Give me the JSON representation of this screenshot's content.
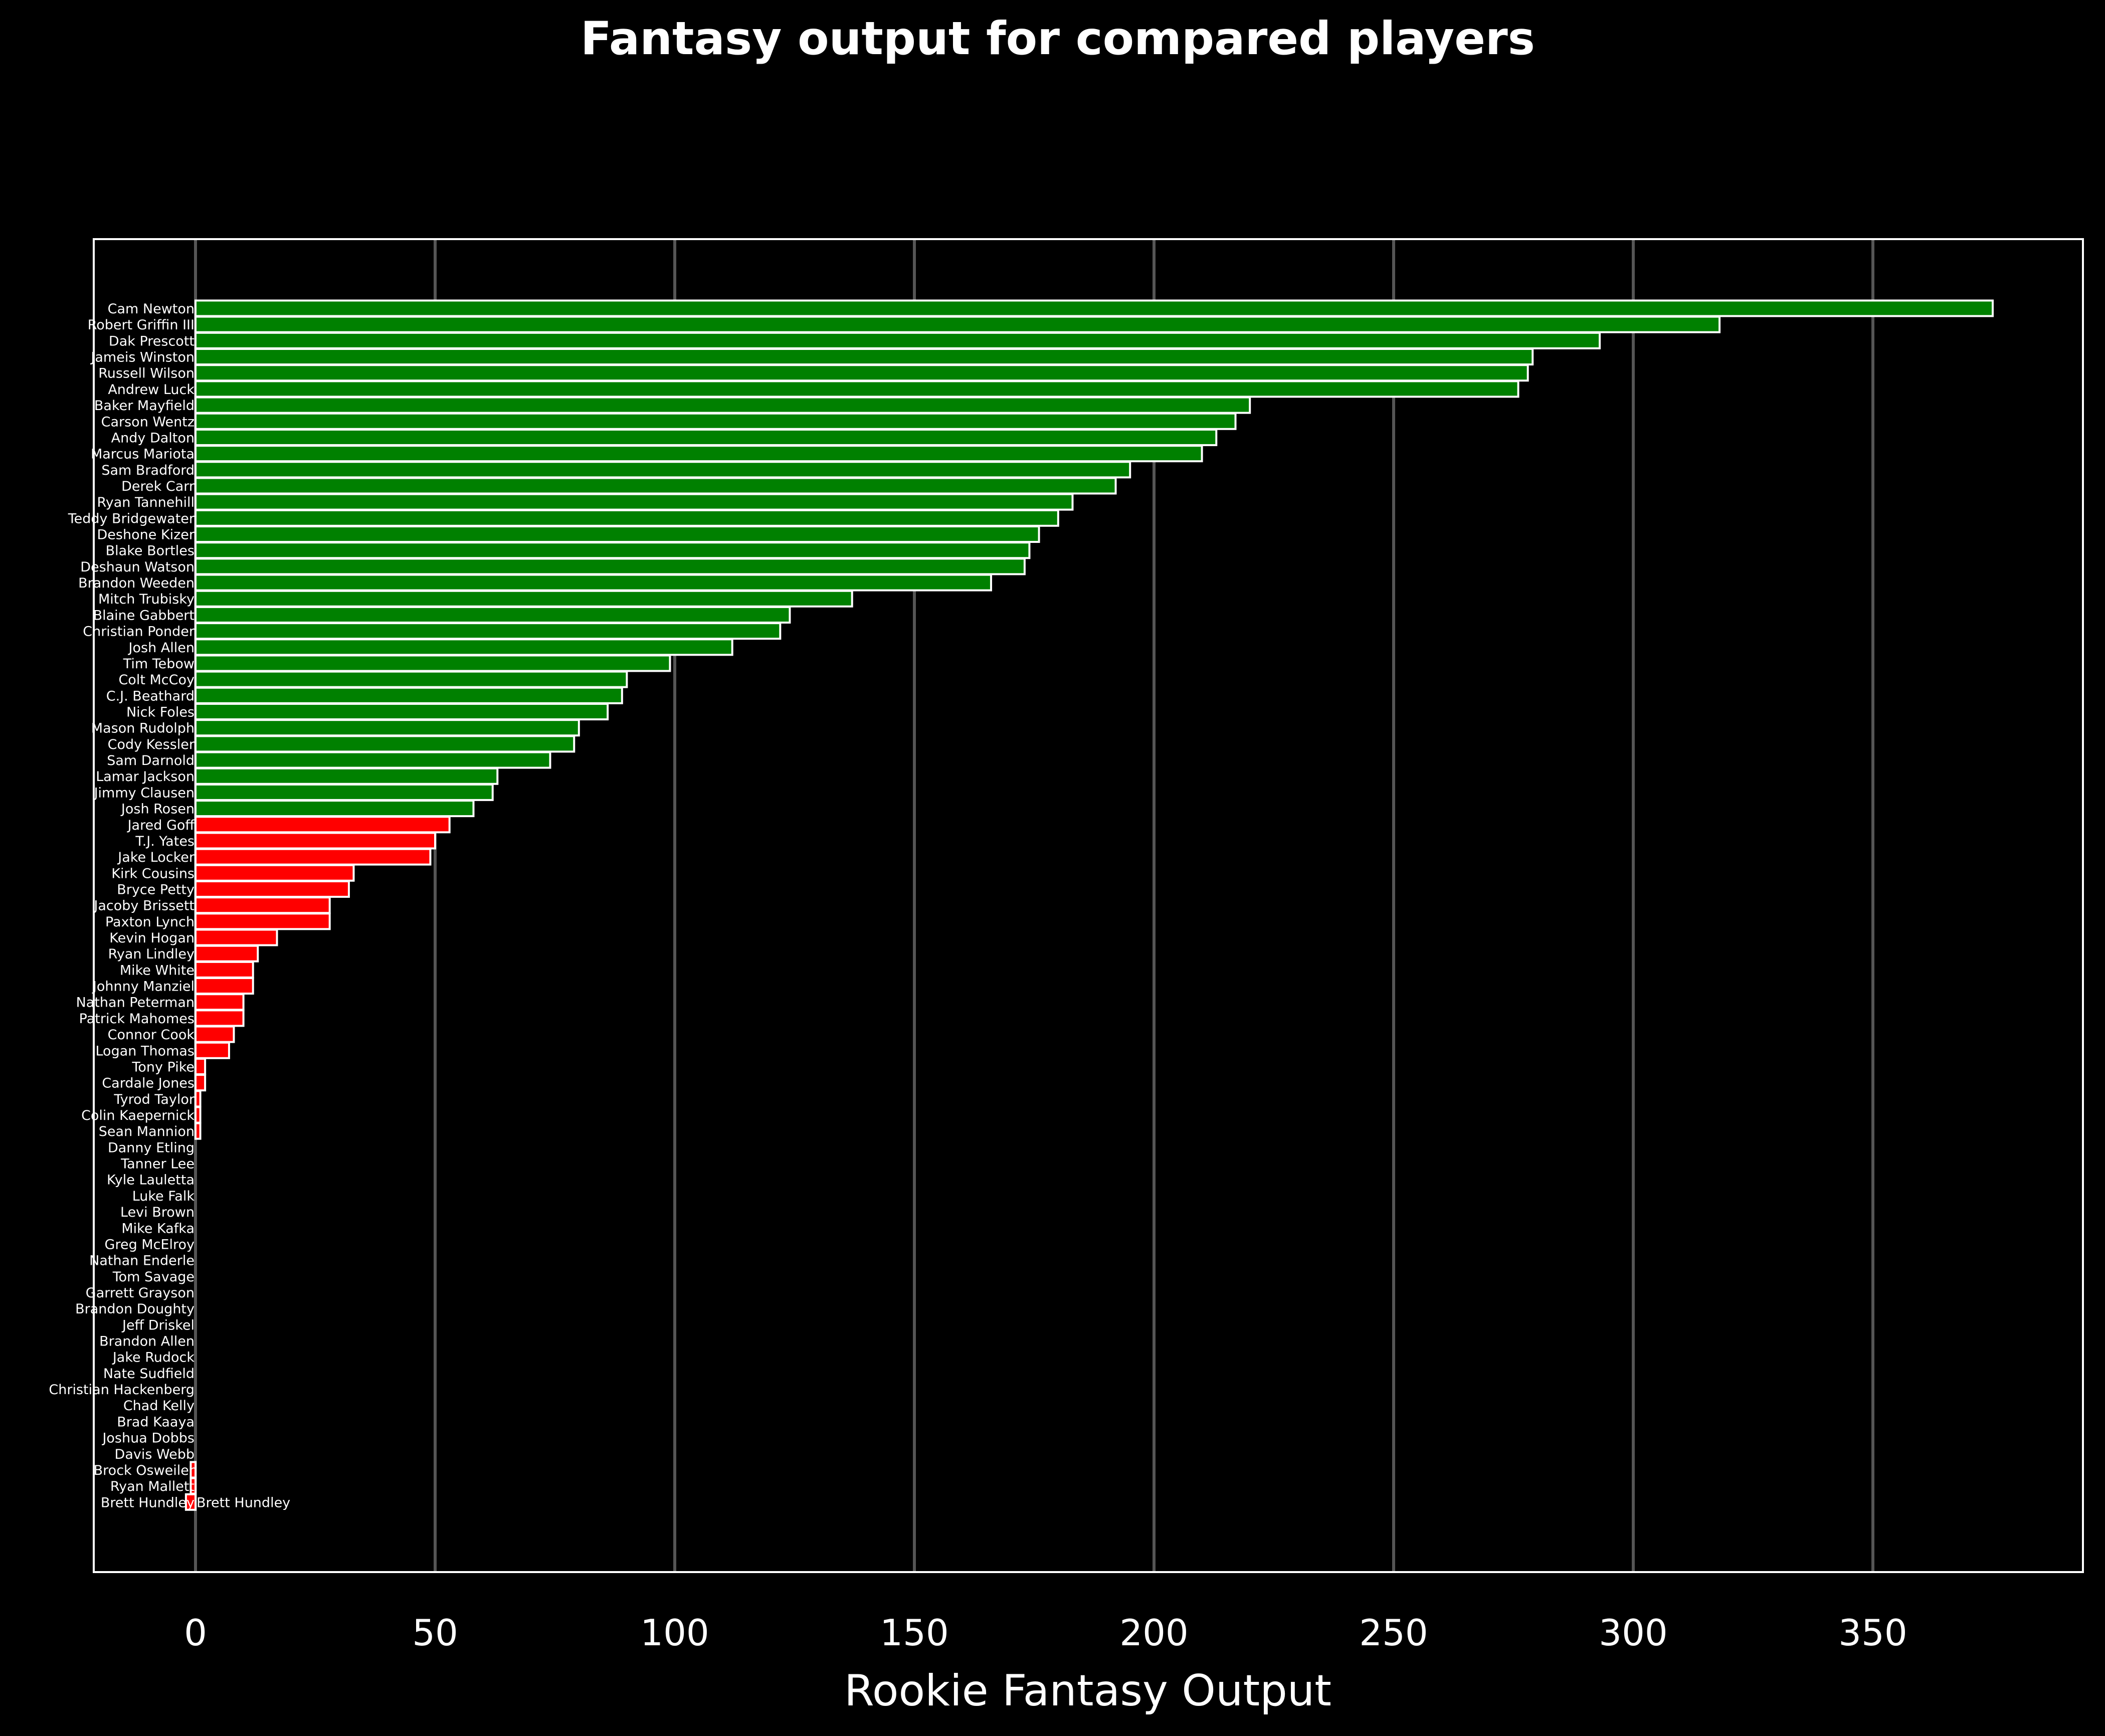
{
  "chart_data": {
    "type": "bar",
    "orientation": "horizontal",
    "title": "Fantasy output for compared players",
    "xlabel": "Rookie Fantasy Output",
    "ylabel": "",
    "xlim": [
      -21,
      394
    ],
    "xticks": [
      0,
      50,
      100,
      150,
      200,
      250,
      300,
      350
    ],
    "grid": "vertical",
    "colors": {
      "background": "#000000",
      "positive": "#008000",
      "negative": "#ff0000",
      "edge": "#ffffff",
      "grid": "#555555",
      "text": "#ffffff"
    },
    "categories": [
      "Cam Newton",
      "Robert Griffin III",
      "Dak Prescott",
      "Jameis Winston",
      "Russell Wilson",
      "Andrew Luck",
      "Baker Mayfield",
      "Carson Wentz",
      "Andy Dalton",
      "Marcus Mariota",
      "Sam Bradford",
      "Derek Carr",
      "Ryan Tannehill",
      "Teddy Bridgewater",
      "Deshone Kizer",
      "Blake Bortles",
      "Deshaun Watson",
      "Brandon Weeden",
      "Mitch Trubisky",
      "Blaine Gabbert",
      "Christian Ponder",
      "Josh Allen",
      "Tim Tebow",
      "Colt McCoy",
      "C.J. Beathard",
      "Nick Foles",
      "Mason Rudolph",
      "Cody Kessler",
      "Sam Darnold",
      "Lamar Jackson",
      "Jimmy Clausen",
      "Josh Rosen",
      "Jared Goff",
      "T.J. Yates",
      "Jake Locker",
      "Kirk Cousins",
      "Bryce Petty",
      "Jacoby Brissett",
      "Paxton Lynch",
      "Kevin Hogan",
      "Ryan Lindley",
      "Mike White",
      "Johnny Manziel",
      "Nathan Peterman",
      "Patrick Mahomes",
      "Connor Cook",
      "Logan Thomas",
      "Tony Pike",
      "Cardale Jones",
      "Tyrod Taylor",
      "Colin Kaepernick",
      "Sean Mannion",
      "Danny Etling",
      "Tanner Lee",
      "Kyle Lauletta",
      "Luke Falk",
      "Levi Brown",
      "Mike Kafka",
      "Greg McElroy",
      "Nathan Enderle",
      "Tom Savage",
      "Garrett Grayson",
      "Brandon Doughty",
      "Jeff Driskel",
      "Brandon Allen",
      "Jake Rudock",
      "Nate Sudfield",
      "Christian Hackenberg",
      "Chad Kelly",
      "Brad Kaaya",
      "Joshua Dobbs",
      "Davis Webb",
      "Brock Osweiler",
      "Ryan Mallett",
      "Brett Hundley"
    ],
    "values": [
      375,
      318,
      293,
      279,
      278,
      276,
      220,
      217,
      213,
      210,
      195,
      192,
      183,
      180,
      176,
      174,
      173,
      166,
      137,
      124,
      122,
      112,
      99,
      90,
      89,
      86,
      80,
      79,
      74,
      63,
      62,
      58,
      53,
      50,
      49,
      33,
      32,
      28,
      28,
      17,
      13,
      12,
      12,
      10,
      10,
      8,
      7,
      2,
      2,
      1,
      1,
      1,
      0,
      0,
      0,
      0,
      0,
      0,
      0,
      0,
      0,
      0,
      0,
      0,
      0,
      0,
      0,
      0,
      0,
      0,
      0,
      0,
      -1,
      -1,
      -2
    ],
    "annotations": [
      {
        "text": "Brett Hundley",
        "category": "Brett Hundley"
      }
    ]
  }
}
